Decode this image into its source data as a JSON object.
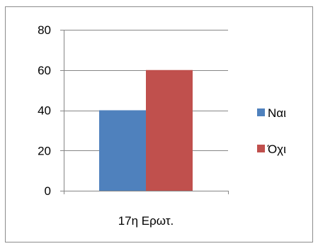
{
  "chart_data": {
    "type": "bar",
    "categories": [
      "17η Ερωτ."
    ],
    "series": [
      {
        "name": "Ναι",
        "values": [
          40
        ],
        "color": "#4f81bd"
      },
      {
        "name": "Όχι",
        "values": [
          60
        ],
        "color": "#c0504d"
      }
    ],
    "ylim": [
      0,
      80
    ],
    "yticks": [
      "0",
      "20",
      "40",
      "60",
      "80"
    ],
    "grid": true,
    "legend_position": "right"
  }
}
